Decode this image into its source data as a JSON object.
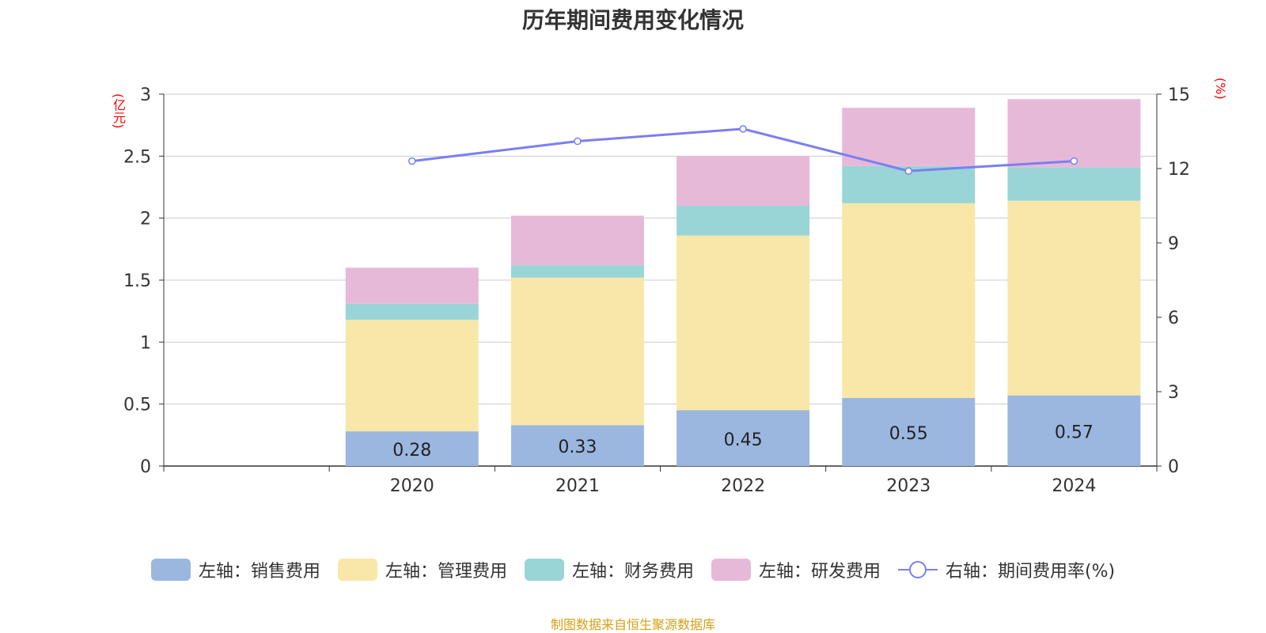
{
  "title": "历年期间费用变化情况",
  "left_unit": "(亿元)",
  "right_unit": "(%)",
  "source": "制图数据来自恒生聚源数据库",
  "chart_data": {
    "type": "bar",
    "stacked": true,
    "categories": [
      "",
      "2020",
      "2021",
      "2022",
      "2023",
      "2024"
    ],
    "ylim_left": [
      0,
      3
    ],
    "yticks_left": [
      "0",
      "0.5",
      "1",
      "1.5",
      "2",
      "2.5",
      "3"
    ],
    "ylim_right": [
      0,
      15
    ],
    "yticks_right": [
      "0",
      "3",
      "6",
      "9",
      "12",
      "15"
    ],
    "grid": true,
    "legend_position": "bottom",
    "series": [
      {
        "name": "左轴：销售费用",
        "axis": "left",
        "color": "#9bb7e0",
        "values": [
          null,
          0.28,
          0.33,
          0.45,
          0.55,
          0.57
        ],
        "labels": [
          "",
          "0.28",
          "0.33",
          "0.45",
          "0.55",
          "0.57"
        ]
      },
      {
        "name": "左轴：管理费用",
        "axis": "left",
        "color": "#f8e7a8",
        "values": [
          null,
          0.9,
          1.19,
          1.41,
          1.57,
          1.57
        ]
      },
      {
        "name": "左轴：财务费用",
        "axis": "left",
        "color": "#99d5d6",
        "values": [
          null,
          0.13,
          0.1,
          0.24,
          0.3,
          0.27
        ]
      },
      {
        "name": "左轴：研发费用",
        "axis": "left",
        "color": "#e7b9d9",
        "values": [
          null,
          0.29,
          0.4,
          0.4,
          0.47,
          0.55
        ]
      },
      {
        "name": "右轴：期间费用率(%)",
        "axis": "right",
        "type": "line",
        "color": "#7b7ff0",
        "values": [
          null,
          12.3,
          13.1,
          13.6,
          11.9,
          12.3
        ]
      }
    ]
  }
}
